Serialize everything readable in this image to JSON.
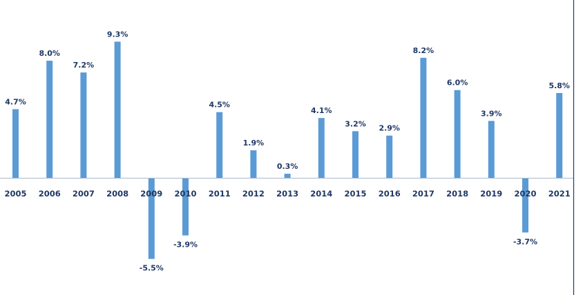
{
  "chart_data": {
    "type": "bar",
    "title": "",
    "xlabel": "",
    "ylabel": "",
    "categories": [
      "2005",
      "2006",
      "2007",
      "2008",
      "2009",
      "2010",
      "2011",
      "2012",
      "2013",
      "2014",
      "2015",
      "2016",
      "2017",
      "2018",
      "2019",
      "2020",
      "2021"
    ],
    "values": [
      4.7,
      8.0,
      7.2,
      9.3,
      -5.5,
      -3.9,
      4.5,
      1.9,
      0.3,
      4.1,
      3.2,
      2.9,
      8.2,
      6.0,
      3.9,
      -3.7,
      5.8
    ],
    "value_labels": [
      "4.7%",
      "8.0%",
      "7.2%",
      "9.3%",
      "-5.5%",
      "-3.9%",
      "4.5%",
      "1.9%",
      "0.3%",
      "4.1%",
      "3.2%",
      "2.9%",
      "8.2%",
      "6.0%",
      "3.9%",
      "-3.7%",
      "5.8%"
    ],
    "ylim": [
      -6.5,
      10.5
    ],
    "grid": false,
    "legend": "none",
    "colors": {
      "bar": "#5b9bd5",
      "text": "#1f3864",
      "axis": "#a6b8cc",
      "frame": "#1f3864"
    }
  }
}
